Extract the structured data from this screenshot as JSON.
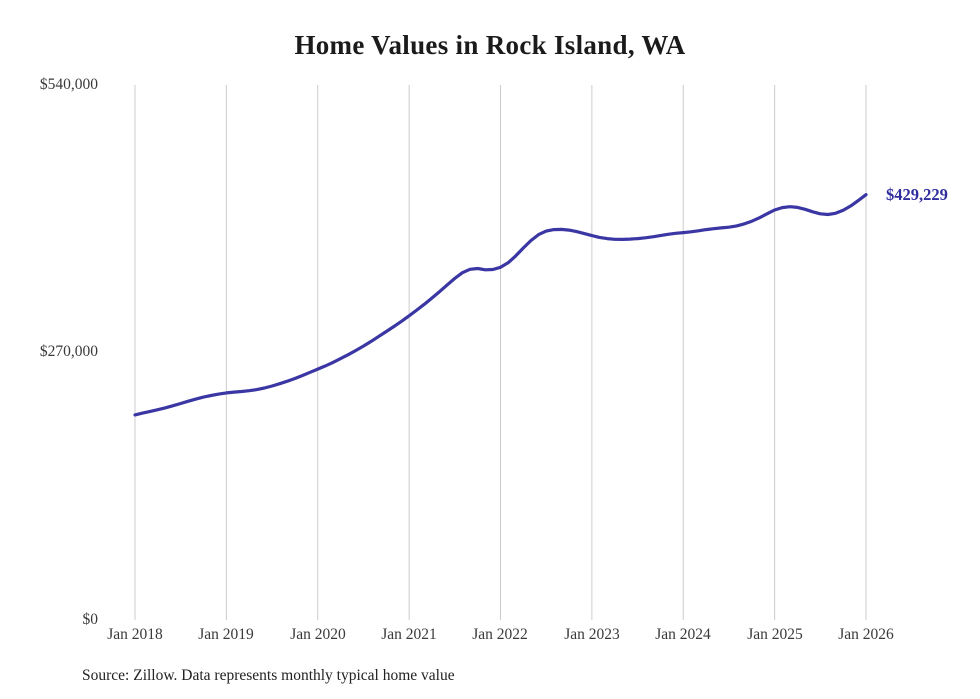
{
  "title": "Home Values in Rock Island, WA",
  "source_note": "Source: Zillow. Data represents monthly typical home value",
  "chart_data": {
    "type": "line",
    "title": "Home Values in Rock Island, WA",
    "x_start": "Jan 2018",
    "x_end": "Jan 2026",
    "frequency": "monthly",
    "ylabel": "",
    "xlabel": "",
    "ylim": [
      0,
      540000
    ],
    "grid": "vertical-only",
    "y_tick_labels": [
      "$0",
      "$270,000",
      "$540,000"
    ],
    "x_tick_labels": [
      "Jan 2018",
      "Jan 2019",
      "Jan 2020",
      "Jan 2021",
      "Jan 2022",
      "Jan 2023",
      "Jan 2024",
      "Jan 2025",
      "Jan 2026"
    ],
    "end_label": "$429,229",
    "final_value": 429229,
    "line_color": "#3a36a3",
    "accent_dark": "#302d9e",
    "grid_color": "#cccccc",
    "values": [
      207000,
      208800,
      210500,
      212300,
      214200,
      216300,
      218500,
      220800,
      223000,
      225000,
      226600,
      228000,
      229200,
      230000,
      230600,
      231400,
      232600,
      234200,
      236200,
      238500,
      241000,
      243800,
      246800,
      250000,
      253200,
      256500,
      260000,
      263800,
      267800,
      272000,
      276500,
      281200,
      286200,
      291200,
      296200,
      301500,
      307000,
      312800,
      318800,
      325000,
      331500,
      338200,
      344800,
      350500,
      354000,
      354800,
      353500,
      353800,
      356000,
      360500,
      367500,
      375500,
      383000,
      389000,
      392500,
      394000,
      394200,
      393500,
      392000,
      390000,
      388000,
      386200,
      385000,
      384300,
      384200,
      384500,
      385000,
      385800,
      386800,
      388000,
      389300,
      390300,
      391000,
      391800,
      392800,
      394000,
      395000,
      395800,
      396500,
      397800,
      399800,
      402500,
      406000,
      410000,
      413800,
      416300,
      417200,
      416500,
      414500,
      412000,
      410000,
      409300,
      410500,
      413500,
      418000,
      423500,
      429229
    ]
  }
}
